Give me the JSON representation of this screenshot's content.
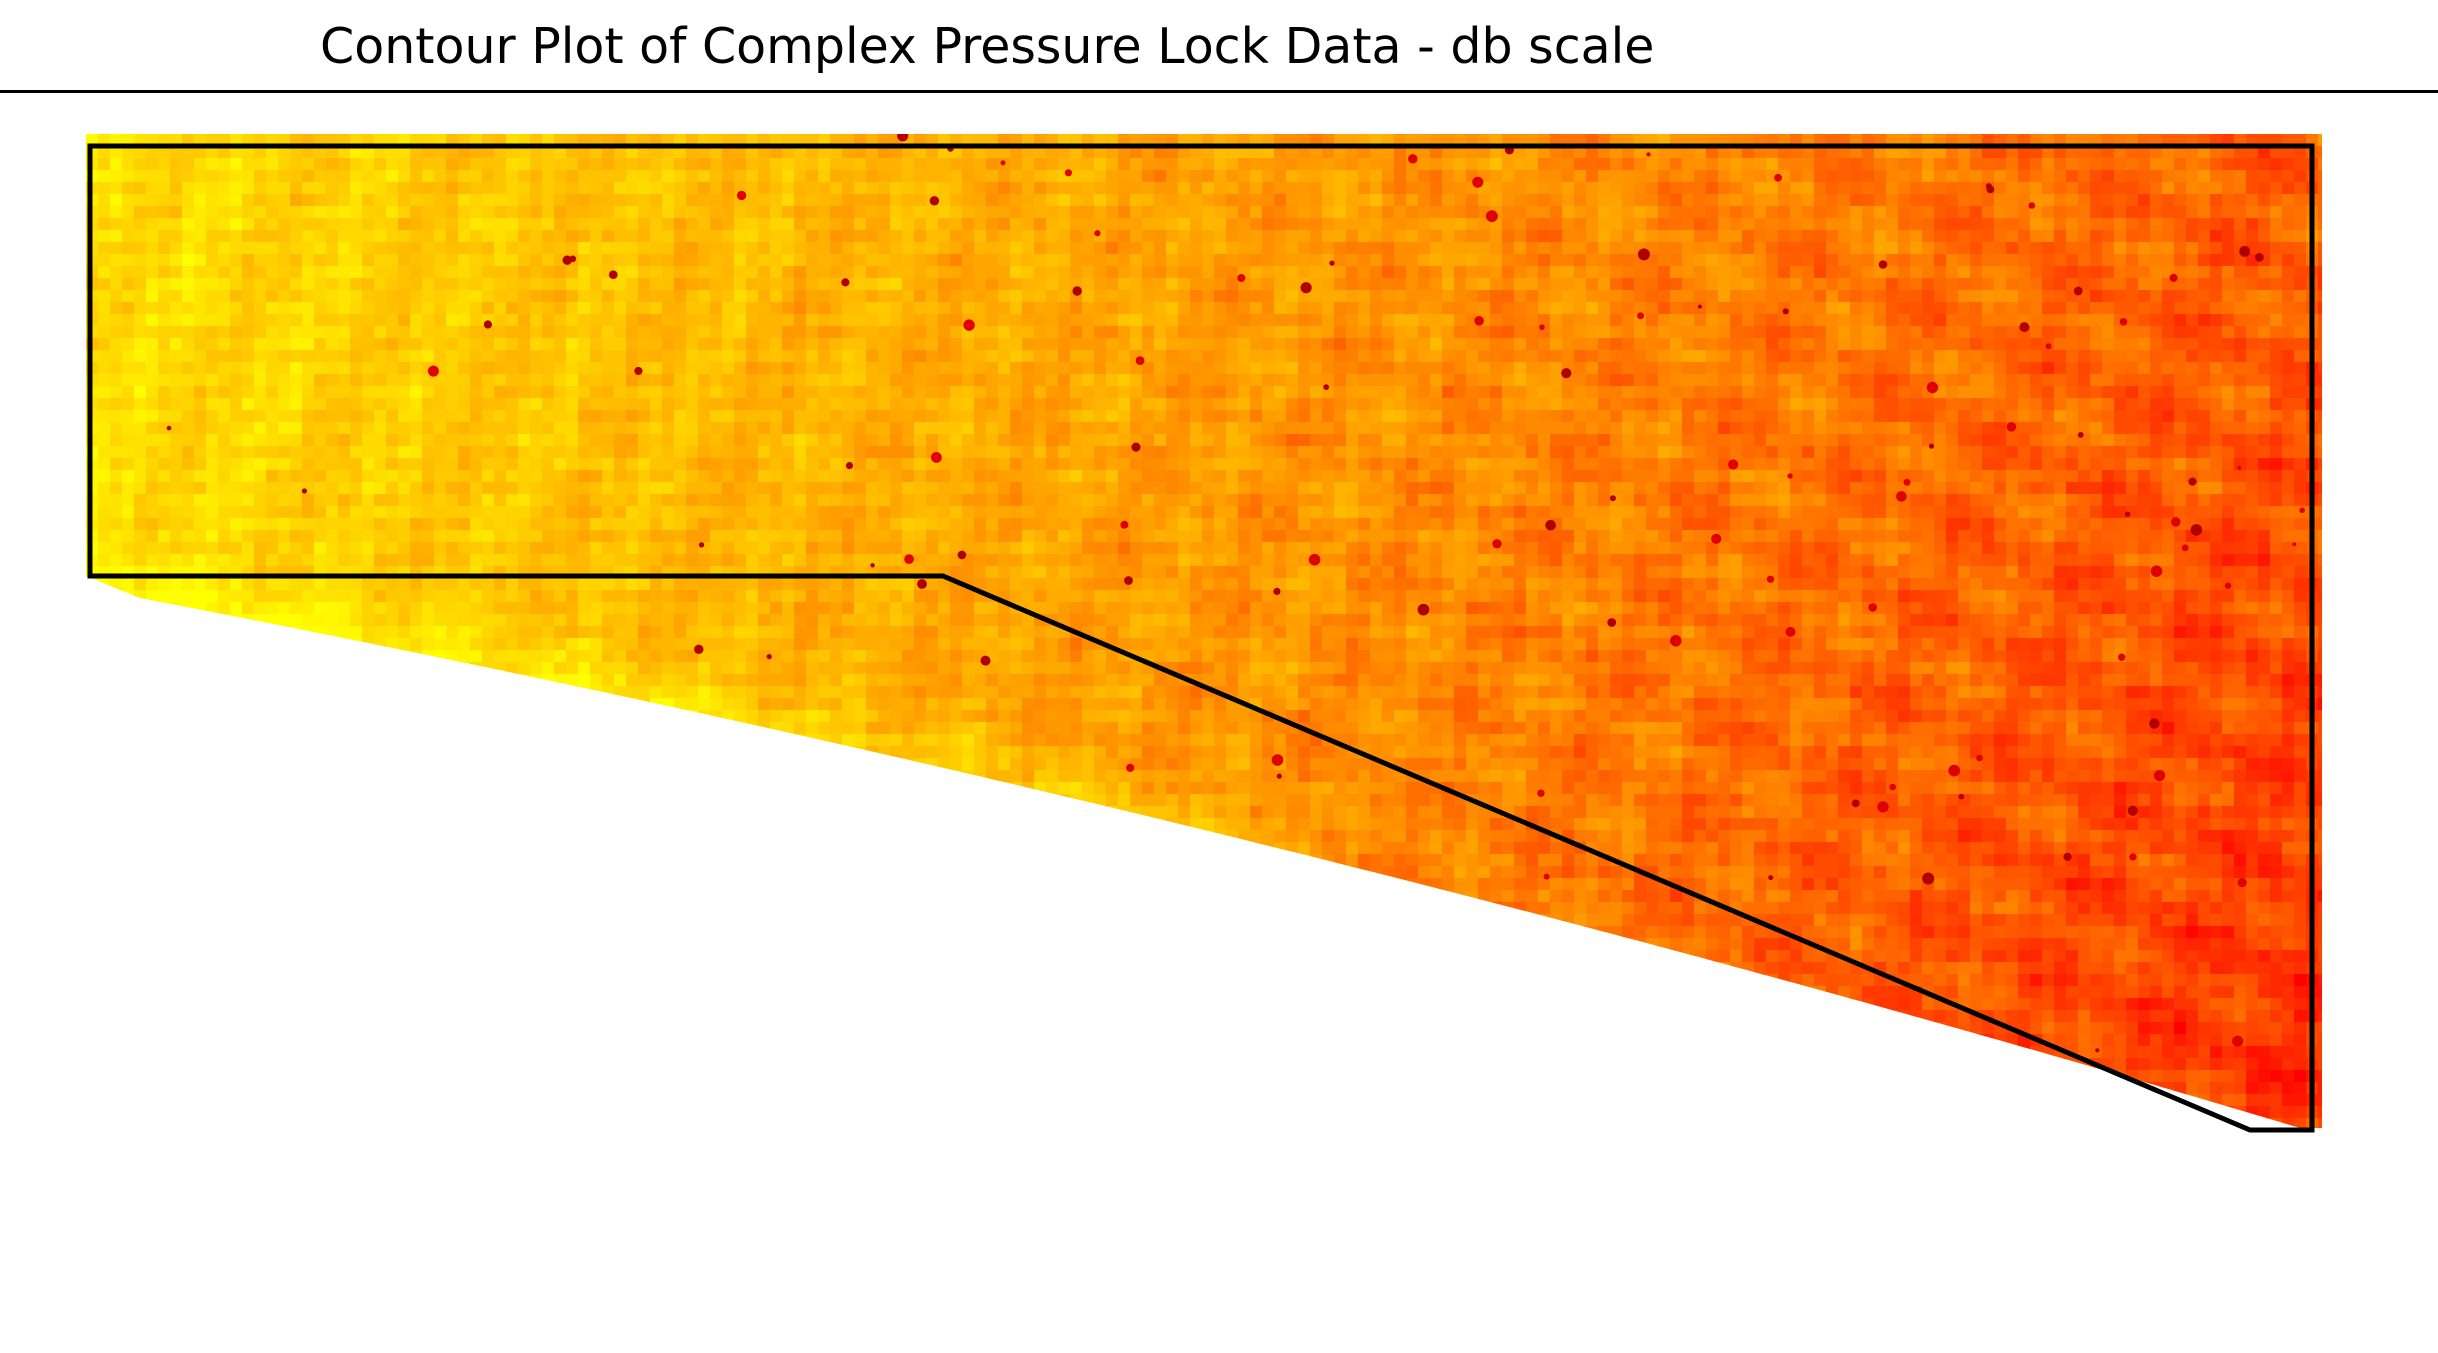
{
  "chart_data": {
    "type": "heatmap",
    "title": "Contour Plot of Complex Pressure Lock Data - db scale",
    "xlabel": "",
    "ylabel": "",
    "colormap": "autumn",
    "grid": false,
    "legend": "none",
    "colors": {
      "low": "#ff0000",
      "mid": "#ff8c00",
      "high": "#ffff00",
      "outline": "#000000"
    }
  }
}
